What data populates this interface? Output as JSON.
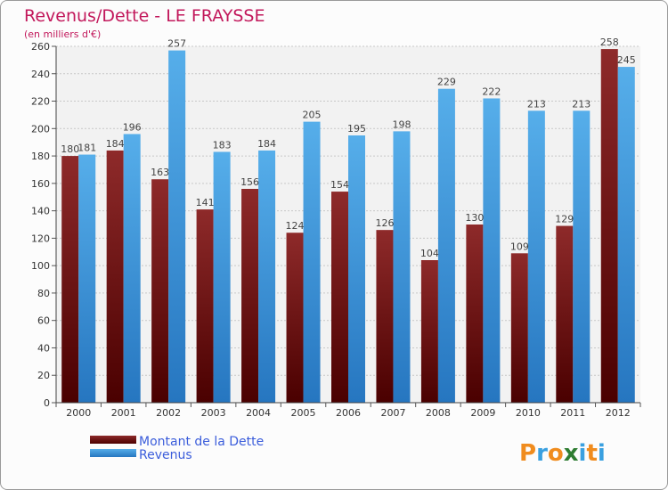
{
  "chart_data": {
    "type": "bar",
    "title": "Revenus/Dette - LE FRAYSSE",
    "subtitle": "(en milliers d'€)",
    "categories": [
      "2000",
      "2001",
      "2002",
      "2003",
      "2004",
      "2005",
      "2006",
      "2007",
      "2008",
      "2009",
      "2010",
      "2011",
      "2012"
    ],
    "series": [
      {
        "name": "Montant de la Dette",
        "color": "#7a1a1a",
        "values": [
          180,
          184,
          163,
          141,
          156,
          124,
          154,
          126,
          104,
          130,
          109,
          129,
          258
        ]
      },
      {
        "name": "Revenus",
        "color": "#3a9ae8",
        "values": [
          181,
          196,
          257,
          183,
          184,
          205,
          195,
          198,
          229,
          222,
          213,
          213,
          245
        ]
      }
    ],
    "yticks": [
      0,
      20,
      40,
      60,
      80,
      100,
      120,
      140,
      160,
      180,
      200,
      220,
      240,
      260
    ],
    "ylim": [
      0,
      260
    ],
    "grid": true,
    "legend_position": "bottom-left"
  },
  "logo": {
    "letters": [
      "P",
      "r",
      "o",
      "x",
      "i",
      "t",
      "i"
    ],
    "colors": [
      "#f08c1e",
      "#3aa0e0",
      "#f08c1e",
      "#2e7d32",
      "#3aa0e0",
      "#f08c1e",
      "#3aa0e0"
    ]
  }
}
